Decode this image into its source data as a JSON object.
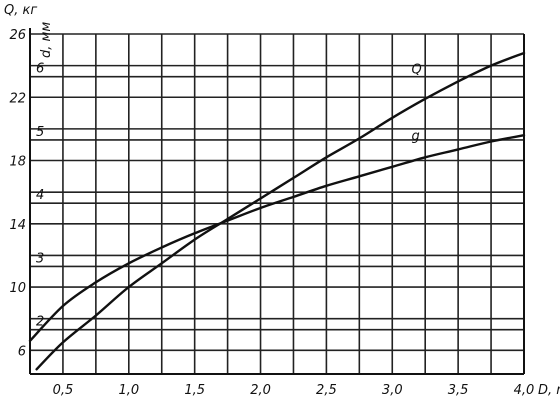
{
  "chart_data": {
    "type": "line",
    "x_axis": {
      "label": "D, m",
      "range": [
        0.25,
        4.0
      ],
      "tick_labels": [
        "0,5",
        "1,0",
        "1,5",
        "2,0",
        "2,5",
        "3,0",
        "3,5",
        "4,0"
      ],
      "tick_values": [
        0.5,
        1.0,
        1.5,
        2.0,
        2.5,
        3.0,
        3.5,
        4.0
      ]
    },
    "y_axis_left": {
      "label": "Q, кг",
      "range": [
        4.5,
        26
      ],
      "tick_labels": [
        "6",
        "10",
        "14",
        "18",
        "22",
        "26"
      ],
      "tick_values": [
        6,
        10,
        14,
        18,
        22,
        26
      ]
    },
    "y_axis_inner": {
      "label": "d, мм",
      "tick_labels": [
        "2",
        "3",
        "4",
        "5",
        "6"
      ],
      "tick_positions_q": [
        7.3,
        11.3,
        15.3,
        19.3,
        23.3
      ]
    },
    "grid": true,
    "series": [
      {
        "name": "Q",
        "x": [
          0.3,
          0.5,
          0.75,
          1.0,
          1.25,
          1.5,
          1.75,
          2.0,
          2.25,
          2.5,
          2.75,
          3.0,
          3.25,
          3.5,
          3.75,
          4.0
        ],
        "y": [
          4.8,
          6.5,
          8.2,
          10.0,
          11.5,
          13.0,
          14.3,
          15.6,
          16.9,
          18.2,
          19.4,
          20.7,
          21.9,
          23.0,
          24.0,
          24.8
        ],
        "label_position": {
          "x": 3.1,
          "y": 23.5
        }
      },
      {
        "name": "g",
        "x": [
          0.25,
          0.5,
          0.75,
          1.0,
          1.25,
          1.5,
          1.75,
          2.0,
          2.25,
          2.5,
          2.75,
          3.0,
          3.25,
          3.5,
          3.75,
          4.0
        ],
        "y": [
          6.6,
          8.8,
          10.3,
          11.5,
          12.5,
          13.4,
          14.2,
          15.0,
          15.7,
          16.4,
          17.0,
          17.6,
          18.2,
          18.7,
          19.2,
          19.6
        ],
        "label_position": {
          "x": 3.1,
          "y": 19.3
        }
      }
    ]
  }
}
